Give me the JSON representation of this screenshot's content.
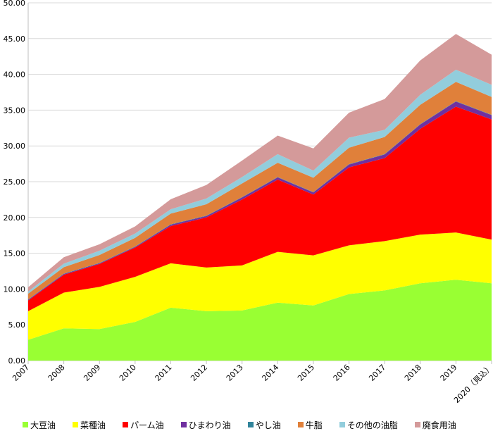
{
  "chart_data": {
    "type": "area",
    "stacked": true,
    "title": "",
    "xlabel": "",
    "ylabel": "",
    "ylim": [
      0,
      50
    ],
    "y_ticks": [
      "0.00",
      "5.00",
      "10.00",
      "15.00",
      "20.00",
      "25.00",
      "30.00",
      "35.00",
      "40.00",
      "45.00",
      "50.00"
    ],
    "categories": [
      "2007",
      "2008",
      "2009",
      "2010",
      "2011",
      "2012",
      "2013",
      "2014",
      "2015",
      "2016",
      "2017",
      "2018",
      "2019",
      "2020（見込）"
    ],
    "series": [
      {
        "name": "大豆油",
        "color": "#99ff33",
        "values": [
          2.9,
          4.5,
          4.4,
          5.4,
          7.4,
          6.9,
          7.0,
          8.1,
          7.7,
          9.3,
          9.8,
          10.8,
          11.3,
          10.8
        ]
      },
      {
        "name": "菜種油",
        "color": "#ffff00",
        "values": [
          4.0,
          5.0,
          5.9,
          6.3,
          6.2,
          6.1,
          6.3,
          7.1,
          7.0,
          6.8,
          6.9,
          6.8,
          6.6,
          6.1
        ]
      },
      {
        "name": "パーム油",
        "color": "#ff0000",
        "values": [
          1.5,
          2.5,
          3.2,
          4.1,
          5.2,
          7.0,
          9.2,
          10.1,
          8.5,
          10.9,
          11.6,
          14.8,
          17.6,
          16.8
        ]
      },
      {
        "name": "ひまわり油",
        "color": "#7030a0",
        "values": [
          0.1,
          0.1,
          0.1,
          0.1,
          0.2,
          0.2,
          0.3,
          0.3,
          0.3,
          0.4,
          0.5,
          0.6,
          0.7,
          0.6
        ]
      },
      {
        "name": "やし油",
        "color": "#31849b",
        "values": [
          0.05,
          0.05,
          0.05,
          0.05,
          0.05,
          0.05,
          0.05,
          0.05,
          0.05,
          0.05,
          0.05,
          0.05,
          0.05,
          0.05
        ]
      },
      {
        "name": "牛脂",
        "color": "#e0803a",
        "values": [
          0.8,
          0.9,
          1.1,
          1.2,
          1.5,
          1.6,
          1.9,
          2.0,
          2.0,
          2.3,
          2.4,
          2.7,
          2.7,
          2.5
        ]
      },
      {
        "name": "その他の油脂",
        "color": "#92cddc",
        "values": [
          0.3,
          0.5,
          0.6,
          0.6,
          0.6,
          0.8,
          0.9,
          1.2,
          1.0,
          1.4,
          1.0,
          1.4,
          1.7,
          1.7
        ]
      },
      {
        "name": "廃食用油",
        "color": "#d49a9a",
        "values": [
          0.6,
          0.9,
          0.9,
          1.0,
          1.4,
          1.9,
          2.3,
          2.6,
          3.1,
          3.5,
          4.3,
          4.8,
          5.0,
          4.2
        ]
      }
    ]
  }
}
